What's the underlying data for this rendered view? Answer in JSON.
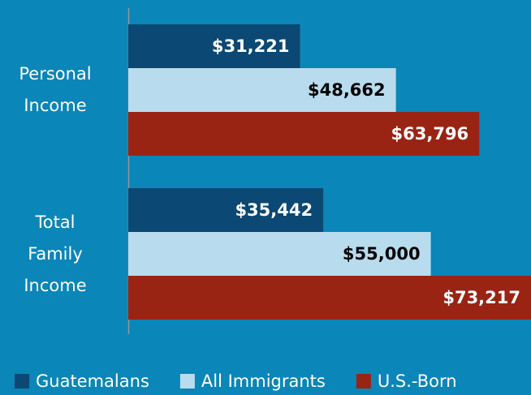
{
  "chart_data": {
    "type": "hbar",
    "categories": [
      "Personal Income",
      "Total Family Income"
    ],
    "series": [
      {
        "name": "Guatemalans",
        "color": "#0b4873",
        "label_color": "#ffffff",
        "values": [
          31221,
          35442
        ],
        "value_labels": [
          "$31,221",
          "$35,442"
        ]
      },
      {
        "name": "All Immigrants",
        "color": "#b8dcee",
        "label_color": "#000000",
        "values": [
          48662,
          55000
        ],
        "value_labels": [
          "$48,662",
          "$55,000"
        ]
      },
      {
        "name": "U.S.-Born",
        "color": "#9a2414",
        "label_color": "#ffffff",
        "values": [
          63796,
          73217
        ],
        "value_labels": [
          "$63,796",
          "$73,217"
        ]
      }
    ]
  }
}
